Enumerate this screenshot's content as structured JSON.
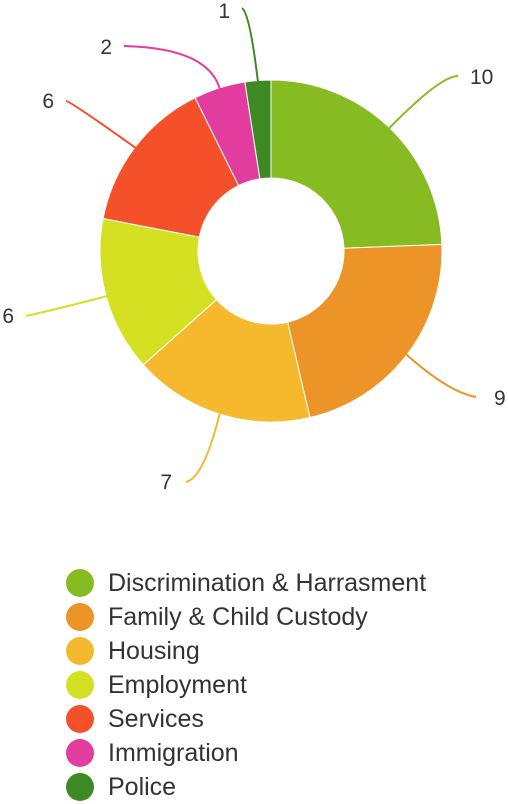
{
  "chart_data": {
    "type": "pie",
    "style": "donut",
    "legend_position": "bottom",
    "categories": [
      "Discrimination & Harrasment",
      "Family & Child Custody",
      "Housing",
      "Employment",
      "Services",
      "Immigration",
      "Police"
    ],
    "values": [
      10,
      9,
      7,
      6,
      6,
      2,
      1
    ],
    "colors": [
      "#86bc22",
      "#ec9427",
      "#f6b92d",
      "#d6e023",
      "#f4502a",
      "#e13c9e",
      "#3d8a24"
    ]
  }
}
